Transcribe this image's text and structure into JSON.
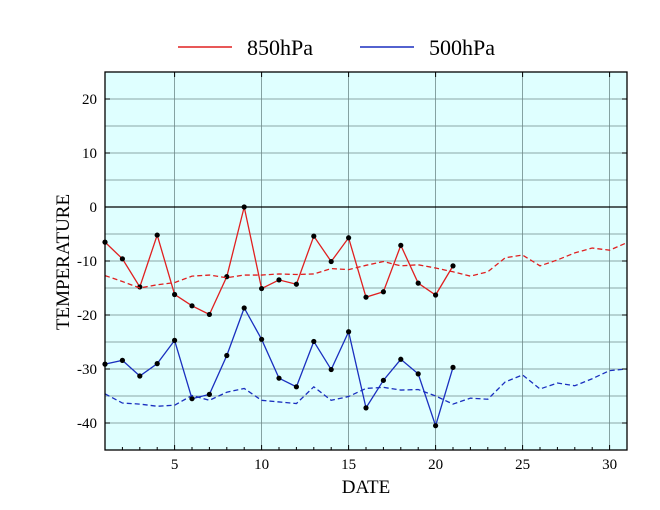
{
  "chart_data": {
    "type": "line",
    "title": "",
    "xlabel": "DATE",
    "ylabel": "TEMPERATURE",
    "xlim": [
      1,
      31
    ],
    "ylim": [
      -45,
      25
    ],
    "xticks": [
      5,
      10,
      15,
      20,
      25,
      30
    ],
    "yticks": [
      20,
      10,
      0,
      -10,
      -20,
      -30,
      -40
    ],
    "xtick_labels": [
      "5",
      "10",
      "15",
      "20",
      "25",
      "30"
    ],
    "ytick_labels": [
      "20",
      "10",
      "0",
      "-10",
      "-20",
      "-30",
      "-40"
    ],
    "grid": true,
    "zero_line": true,
    "legend": "top",
    "background_color": "#dfffff",
    "series": [
      {
        "name": "850hPa",
        "color": "#e02020",
        "style": "solid",
        "markers": true,
        "x": [
          1,
          2,
          3,
          4,
          5,
          6,
          7,
          8,
          9,
          10,
          11,
          12,
          13,
          14,
          15,
          16,
          17,
          18,
          19,
          20,
          21
        ],
        "y": [
          -6.5,
          -9.6,
          -14.8,
          -5.2,
          -16.2,
          -18.3,
          -19.9,
          -12.9,
          0.0,
          -15.1,
          -13.5,
          -14.3,
          -5.4,
          -10.1,
          -5.7,
          -16.7,
          -15.7,
          -7.1,
          -14.1,
          -16.3,
          -10.9
        ]
      },
      {
        "name": "500hPa",
        "color": "#1a2fbf",
        "style": "solid",
        "markers": true,
        "x": [
          1,
          2,
          3,
          4,
          5,
          6,
          7,
          8,
          9,
          10,
          11,
          12,
          13,
          14,
          15,
          16,
          17,
          18,
          19,
          20,
          21
        ],
        "y": [
          -29.1,
          -28.4,
          -31.3,
          -29.0,
          -24.7,
          -35.5,
          -34.7,
          -27.5,
          -18.7,
          -24.5,
          -31.7,
          -33.3,
          -24.9,
          -30.1,
          -23.1,
          -37.2,
          -32.1,
          -28.2,
          -30.9,
          -40.5,
          -29.7
        ]
      },
      {
        "color": "#e02020",
        "style": "dashed",
        "markers": false,
        "x": [
          1,
          2,
          3,
          4,
          5,
          6,
          7,
          8,
          9,
          10,
          11,
          12,
          13,
          14,
          15,
          16,
          17,
          18,
          19,
          20,
          21,
          22,
          23,
          24,
          25,
          26,
          27,
          28,
          29,
          30,
          31
        ],
        "y": [
          -12.7,
          -13.8,
          -15.0,
          -14.4,
          -14.0,
          -12.8,
          -12.6,
          -13.1,
          -12.6,
          -12.6,
          -12.4,
          -12.5,
          -12.4,
          -11.4,
          -11.6,
          -10.8,
          -10.1,
          -10.9,
          -10.7,
          -11.3,
          -12.0,
          -12.8,
          -12.0,
          -9.4,
          -8.9,
          -10.9,
          -9.8,
          -8.5,
          -7.6,
          -8.0,
          -6.6
        ]
      },
      {
        "color": "#1a2fbf",
        "style": "dashed",
        "markers": false,
        "x": [
          1,
          2,
          3,
          4,
          5,
          6,
          7,
          8,
          9,
          10,
          11,
          12,
          13,
          14,
          15,
          16,
          17,
          18,
          19,
          20,
          21,
          22,
          23,
          24,
          25,
          26,
          27,
          28,
          29,
          30,
          31
        ],
        "y": [
          -34.6,
          -36.3,
          -36.5,
          -36.9,
          -36.7,
          -34.9,
          -35.8,
          -34.3,
          -33.6,
          -35.8,
          -36.1,
          -36.4,
          -33.3,
          -35.8,
          -35.1,
          -33.6,
          -33.4,
          -33.9,
          -33.8,
          -35.0,
          -36.5,
          -35.4,
          -35.6,
          -32.4,
          -31.1,
          -33.7,
          -32.6,
          -33.1,
          -31.8,
          -30.3,
          -30.0
        ]
      }
    ]
  }
}
